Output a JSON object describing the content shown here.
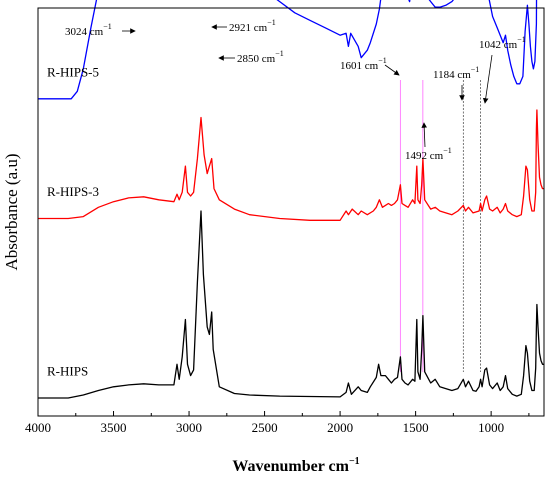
{
  "chart_data": {
    "type": "line",
    "xlabel": "Wavenumber cm",
    "xlabel_sup": "−1",
    "ylabel": "Absorbance (a.u)",
    "xlim": [
      4000,
      650
    ],
    "x_reversed": true,
    "x_ticks": [
      4000,
      3500,
      3000,
      2500,
      2000,
      1500,
      1000
    ],
    "series": [
      {
        "name": "R-HIPS-5",
        "color": "#0000ff",
        "baseline": 0.8,
        "points": [
          [
            4000,
            0.0
          ],
          [
            3780,
            0.0
          ],
          [
            3740,
            0.02
          ],
          [
            3700,
            0.08
          ],
          [
            3650,
            0.19
          ],
          [
            3600,
            0.29
          ],
          [
            3550,
            0.35
          ],
          [
            3500,
            0.38
          ],
          [
            3450,
            0.395
          ],
          [
            3400,
            0.405
          ],
          [
            3350,
            0.41
          ],
          [
            3300,
            0.41
          ],
          [
            3250,
            0.405
          ],
          [
            3200,
            0.4
          ],
          [
            3150,
            0.39
          ],
          [
            3100,
            0.385
          ],
          [
            3080,
            0.44
          ],
          [
            3065,
            0.4
          ],
          [
            3045,
            0.43
          ],
          [
            3024,
            0.55
          ],
          [
            3010,
            0.42
          ],
          [
            2990,
            0.39
          ],
          [
            2970,
            0.4
          ],
          [
            2945,
            0.52
          ],
          [
            2921,
            0.64
          ],
          [
            2900,
            0.52
          ],
          [
            2880,
            0.47
          ],
          [
            2865,
            0.5
          ],
          [
            2850,
            0.53
          ],
          [
            2835,
            0.44
          ],
          [
            2810,
            0.4
          ],
          [
            2780,
            0.385
          ],
          [
            2750,
            0.375
          ],
          [
            2700,
            0.36
          ],
          [
            2650,
            0.345
          ],
          [
            2600,
            0.33
          ],
          [
            2550,
            0.31
          ],
          [
            2500,
            0.29
          ],
          [
            2400,
            0.26
          ],
          [
            2300,
            0.23
          ],
          [
            2200,
            0.21
          ],
          [
            2100,
            0.19
          ],
          [
            2000,
            0.17
          ],
          [
            1960,
            0.175
          ],
          [
            1945,
            0.14
          ],
          [
            1930,
            0.175
          ],
          [
            1880,
            0.14
          ],
          [
            1860,
            0.11
          ],
          [
            1820,
            0.13
          ],
          [
            1800,
            0.15
          ],
          [
            1760,
            0.2
          ],
          [
            1740,
            0.24
          ],
          [
            1720,
            0.3
          ],
          [
            1700,
            0.36
          ],
          [
            1680,
            0.38
          ],
          [
            1660,
            0.375
          ],
          [
            1640,
            0.36
          ],
          [
            1620,
            0.4
          ],
          [
            1601,
            0.44
          ],
          [
            1590,
            0.34
          ],
          [
            1570,
            0.31
          ],
          [
            1560,
            0.28
          ],
          [
            1540,
            0.26
          ],
          [
            1515,
            0.33
          ],
          [
            1500,
            0.35
          ],
          [
            1492,
            0.4
          ],
          [
            1485,
            0.31
          ],
          [
            1470,
            0.29
          ],
          [
            1460,
            0.36
          ],
          [
            1452,
            0.44
          ],
          [
            1440,
            0.33
          ],
          [
            1420,
            0.27
          ],
          [
            1400,
            0.26
          ],
          [
            1370,
            0.245
          ],
          [
            1340,
            0.245
          ],
          [
            1300,
            0.25
          ],
          [
            1260,
            0.26
          ],
          [
            1220,
            0.28
          ],
          [
            1184,
            0.3
          ],
          [
            1170,
            0.305
          ],
          [
            1150,
            0.32
          ],
          [
            1120,
            0.325
          ],
          [
            1100,
            0.315
          ],
          [
            1080,
            0.31
          ],
          [
            1070,
            0.31
          ],
          [
            1060,
            0.29
          ],
          [
            1042,
            0.285
          ],
          [
            1030,
            0.3
          ],
          [
            1010,
            0.26
          ],
          [
            990,
            0.22
          ],
          [
            960,
            0.19
          ],
          [
            940,
            0.17
          ],
          [
            920,
            0.15
          ],
          [
            905,
            0.17
          ],
          [
            890,
            0.13
          ],
          [
            870,
            0.09
          ],
          [
            850,
            0.06
          ],
          [
            830,
            0.04
          ],
          [
            810,
            0.04
          ],
          [
            790,
            0.06
          ],
          [
            775,
            0.18
          ],
          [
            760,
            0.25
          ],
          [
            750,
            0.2
          ],
          [
            740,
            0.14
          ],
          [
            730,
            0.1
          ],
          [
            720,
            0.08
          ],
          [
            710,
            0.1
          ],
          [
            700,
            0.2
          ],
          [
            695,
            0.62
          ],
          [
            690,
            0.52
          ],
          [
            680,
            0.4
          ],
          [
            670,
            0.36
          ],
          [
            660,
            0.34
          ],
          [
            650,
            0.35
          ]
        ]
      },
      {
        "name": "R-HIPS-3",
        "color": "#ff0000",
        "baseline": 0.48,
        "points": [
          [
            4000,
            0.0
          ],
          [
            3800,
            0.0
          ],
          [
            3700,
            0.005
          ],
          [
            3600,
            0.03
          ],
          [
            3500,
            0.045
          ],
          [
            3400,
            0.055
          ],
          [
            3300,
            0.058
          ],
          [
            3200,
            0.05
          ],
          [
            3100,
            0.045
          ],
          [
            3080,
            0.065
          ],
          [
            3065,
            0.05
          ],
          [
            3045,
            0.07
          ],
          [
            3024,
            0.14
          ],
          [
            3010,
            0.07
          ],
          [
            2990,
            0.06
          ],
          [
            2970,
            0.07
          ],
          [
            2945,
            0.16
          ],
          [
            2921,
            0.27
          ],
          [
            2900,
            0.17
          ],
          [
            2880,
            0.12
          ],
          [
            2865,
            0.14
          ],
          [
            2850,
            0.16
          ],
          [
            2835,
            0.08
          ],
          [
            2800,
            0.05
          ],
          [
            2700,
            0.025
          ],
          [
            2600,
            0.01
          ],
          [
            2400,
            0.0
          ],
          [
            2200,
            -0.005
          ],
          [
            2000,
            -0.005
          ],
          [
            1960,
            0.02
          ],
          [
            1945,
            0.01
          ],
          [
            1920,
            0.025
          ],
          [
            1880,
            0.01
          ],
          [
            1860,
            0.02
          ],
          [
            1820,
            0.01
          ],
          [
            1780,
            0.02
          ],
          [
            1760,
            0.03
          ],
          [
            1740,
            0.05
          ],
          [
            1720,
            0.03
          ],
          [
            1700,
            0.035
          ],
          [
            1680,
            0.04
          ],
          [
            1660,
            0.035
          ],
          [
            1640,
            0.04
          ],
          [
            1620,
            0.05
          ],
          [
            1601,
            0.09
          ],
          [
            1590,
            0.04
          ],
          [
            1570,
            0.035
          ],
          [
            1550,
            0.03
          ],
          [
            1520,
            0.05
          ],
          [
            1505,
            0.04
          ],
          [
            1492,
            0.14
          ],
          [
            1485,
            0.05
          ],
          [
            1470,
            0.04
          ],
          [
            1460,
            0.09
          ],
          [
            1452,
            0.16
          ],
          [
            1440,
            0.05
          ],
          [
            1400,
            0.025
          ],
          [
            1370,
            0.03
          ],
          [
            1340,
            0.02
          ],
          [
            1300,
            0.015
          ],
          [
            1260,
            0.01
          ],
          [
            1220,
            0.02
          ],
          [
            1184,
            0.035
          ],
          [
            1170,
            0.02
          ],
          [
            1150,
            0.03
          ],
          [
            1120,
            0.015
          ],
          [
            1080,
            0.02
          ],
          [
            1070,
            0.04
          ],
          [
            1060,
            0.02
          ],
          [
            1042,
            0.05
          ],
          [
            1030,
            0.06
          ],
          [
            1010,
            0.025
          ],
          [
            990,
            0.02
          ],
          [
            960,
            0.03
          ],
          [
            940,
            0.015
          ],
          [
            920,
            0.025
          ],
          [
            905,
            0.04
          ],
          [
            890,
            0.02
          ],
          [
            860,
            0.01
          ],
          [
            830,
            0.005
          ],
          [
            800,
            0.01
          ],
          [
            785,
            0.06
          ],
          [
            770,
            0.14
          ],
          [
            760,
            0.13
          ],
          [
            745,
            0.05
          ],
          [
            730,
            0.02
          ],
          [
            715,
            0.02
          ],
          [
            705,
            0.07
          ],
          [
            700,
            0.24
          ],
          [
            697,
            0.29
          ],
          [
            690,
            0.2
          ],
          [
            680,
            0.11
          ],
          [
            670,
            0.09
          ],
          [
            660,
            0.08
          ],
          [
            650,
            0.08
          ]
        ]
      },
      {
        "name": "R-HIPS",
        "color": "#000000",
        "baseline": 0.0,
        "points": [
          [
            4000,
            0.0
          ],
          [
            3800,
            0.0
          ],
          [
            3700,
            0.008
          ],
          [
            3600,
            0.02
          ],
          [
            3500,
            0.03
          ],
          [
            3400,
            0.035
          ],
          [
            3300,
            0.038
          ],
          [
            3200,
            0.035
          ],
          [
            3100,
            0.035
          ],
          [
            3080,
            0.09
          ],
          [
            3065,
            0.05
          ],
          [
            3045,
            0.11
          ],
          [
            3024,
            0.21
          ],
          [
            3010,
            0.09
          ],
          [
            2990,
            0.06
          ],
          [
            2970,
            0.075
          ],
          [
            2945,
            0.31
          ],
          [
            2921,
            0.5
          ],
          [
            2905,
            0.33
          ],
          [
            2880,
            0.19
          ],
          [
            2865,
            0.17
          ],
          [
            2850,
            0.23
          ],
          [
            2840,
            0.13
          ],
          [
            2800,
            0.03
          ],
          [
            2700,
            0.012
          ],
          [
            2600,
            0.008
          ],
          [
            2400,
            0.005
          ],
          [
            2200,
            0.004
          ],
          [
            2000,
            0.003
          ],
          [
            1960,
            0.015
          ],
          [
            1945,
            0.04
          ],
          [
            1925,
            0.01
          ],
          [
            1880,
            0.03
          ],
          [
            1860,
            0.02
          ],
          [
            1820,
            0.015
          ],
          [
            1800,
            0.03
          ],
          [
            1760,
            0.055
          ],
          [
            1745,
            0.09
          ],
          [
            1730,
            0.06
          ],
          [
            1700,
            0.06
          ],
          [
            1680,
            0.05
          ],
          [
            1660,
            0.04
          ],
          [
            1640,
            0.05
          ],
          [
            1620,
            0.055
          ],
          [
            1601,
            0.11
          ],
          [
            1590,
            0.05
          ],
          [
            1570,
            0.04
          ],
          [
            1550,
            0.035
          ],
          [
            1520,
            0.05
          ],
          [
            1505,
            0.045
          ],
          [
            1492,
            0.21
          ],
          [
            1485,
            0.07
          ],
          [
            1470,
            0.05
          ],
          [
            1460,
            0.13
          ],
          [
            1452,
            0.22
          ],
          [
            1440,
            0.07
          ],
          [
            1400,
            0.04
          ],
          [
            1370,
            0.05
          ],
          [
            1340,
            0.03
          ],
          [
            1300,
            0.025
          ],
          [
            1260,
            0.02
          ],
          [
            1220,
            0.025
          ],
          [
            1184,
            0.05
          ],
          [
            1170,
            0.03
          ],
          [
            1150,
            0.045
          ],
          [
            1120,
            0.02
          ],
          [
            1100,
            0.018
          ],
          [
            1080,
            0.03
          ],
          [
            1070,
            0.05
          ],
          [
            1060,
            0.03
          ],
          [
            1042,
            0.075
          ],
          [
            1030,
            0.08
          ],
          [
            1010,
            0.035
          ],
          [
            990,
            0.025
          ],
          [
            960,
            0.04
          ],
          [
            940,
            0.02
          ],
          [
            920,
            0.03
          ],
          [
            905,
            0.06
          ],
          [
            890,
            0.025
          ],
          [
            860,
            0.01
          ],
          [
            830,
            0.005
          ],
          [
            800,
            0.01
          ],
          [
            785,
            0.06
          ],
          [
            770,
            0.14
          ],
          [
            760,
            0.12
          ],
          [
            745,
            0.045
          ],
          [
            730,
            0.02
          ],
          [
            715,
            0.02
          ],
          [
            705,
            0.08
          ],
          [
            700,
            0.19
          ],
          [
            697,
            0.25
          ],
          [
            690,
            0.19
          ],
          [
            680,
            0.12
          ],
          [
            670,
            0.1
          ],
          [
            660,
            0.09
          ],
          [
            650,
            0.09
          ]
        ]
      }
    ],
    "annotations": [
      {
        "main": "3024 cm",
        "sup": "−1",
        "x": 3024
      },
      {
        "main": "2921 cm",
        "sup": "−1",
        "x": 2921
      },
      {
        "main": "2850 cm",
        "sup": "−1",
        "x": 2850
      },
      {
        "main": "1601 cm",
        "sup": "−1",
        "x": 1601
      },
      {
        "main": "1492 cm",
        "sup": "−1",
        "x": 1492
      },
      {
        "main": "1184 cm",
        "sup": "−1",
        "x": 1184
      },
      {
        "main": "1042 cm",
        "sup": "−1",
        "x": 1042
      }
    ],
    "guide_lines": [
      {
        "x": 1601,
        "color": "#ff66ff"
      },
      {
        "x": 1452,
        "color": "#ff66ff"
      },
      {
        "x": 1184,
        "color": "#555555"
      },
      {
        "x": 1070,
        "color": "#555555"
      }
    ],
    "grid": false
  }
}
